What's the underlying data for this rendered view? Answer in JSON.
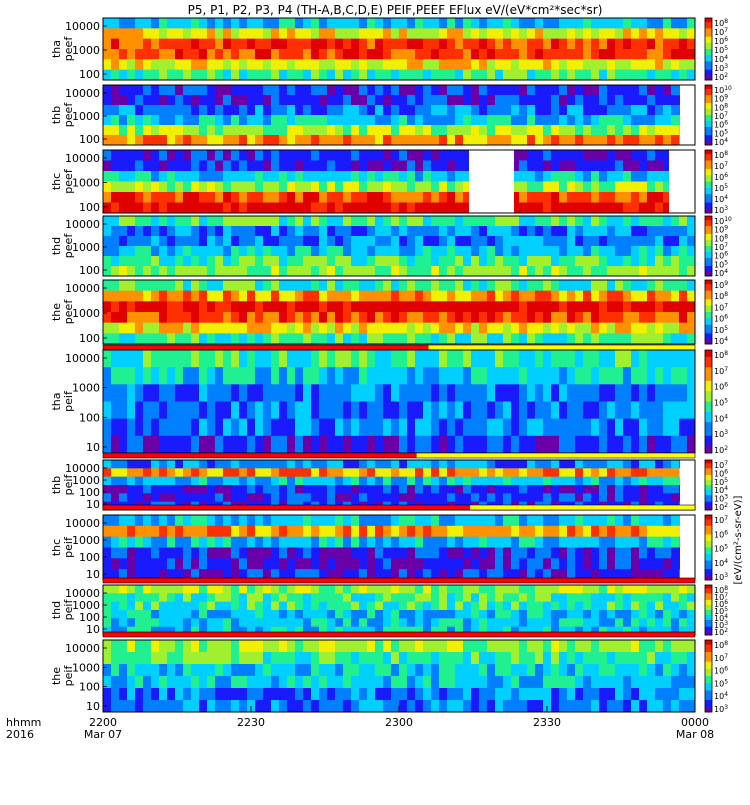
{
  "title": "P5, P1, P2, P3, P4 (TH-A,B,C,D,E) PEIF,PEEF EFlux eV/(eV*cm²*sec*sr)",
  "chart_data": {
    "type": "heatmap",
    "x_axis": {
      "label_rows": [
        "hhmm",
        "2016"
      ],
      "ticks": [
        {
          "time": "2200",
          "date": "Mar 07"
        },
        {
          "time": "2230",
          "date": ""
        },
        {
          "time": "2300",
          "date": ""
        },
        {
          "time": "2330",
          "date": ""
        },
        {
          "time": "0000",
          "date": "Mar 08"
        }
      ]
    },
    "panels": [
      {
        "name": "tha peef",
        "probe": "tha",
        "species": "peef",
        "yticks": [
          "10000",
          "1000",
          "100"
        ],
        "cbar_labels": [
          "10^8",
          "10^7",
          "10^6",
          "10^5",
          "10^4",
          "10^3",
          "10^2"
        ],
        "profile": [
          3,
          6,
          8,
          8,
          6,
          4
        ],
        "has_range_bar": false
      },
      {
        "name": "thb peef",
        "probe": "thb",
        "species": "peef",
        "yticks": [
          "10000",
          "1000",
          "100"
        ],
        "cbar_labels": [
          "10^10",
          "10^9",
          "10^8",
          "10^7",
          "10^6",
          "10^5",
          "10^4"
        ],
        "profile": [
          1,
          1,
          2,
          3,
          5,
          7
        ],
        "has_range_bar": false
      },
      {
        "name": "thc peef",
        "probe": "thc",
        "species": "peef",
        "yticks": [
          "10000",
          "1000",
          "100"
        ],
        "cbar_labels": [
          "10^8",
          "10^7",
          "10^6",
          "10^5",
          "10^4",
          "10^3"
        ],
        "profile": [
          1,
          1,
          3,
          5,
          8,
          9
        ],
        "has_range_bar": false
      },
      {
        "name": "thd peef",
        "probe": "thd",
        "species": "peef",
        "yticks": [
          "10000",
          "1000",
          "100"
        ],
        "cbar_labels": [
          "10^10",
          "10^9",
          "10^8",
          "10^7",
          "10^6",
          "10^5",
          "10^4"
        ],
        "profile": [
          4,
          2,
          2,
          3,
          4,
          5
        ],
        "has_range_bar": false
      },
      {
        "name": "the peef",
        "probe": "the",
        "species": "peef",
        "yticks": [
          "10000",
          "1000",
          "100"
        ],
        "cbar_labels": [
          "10^9",
          "10^8",
          "10^7",
          "10^6",
          "10^5",
          "10^4"
        ],
        "profile": [
          4,
          7,
          9,
          8,
          6,
          4
        ],
        "has_range_bar": false
      },
      {
        "name": "tha peif",
        "probe": "tha",
        "species": "peif",
        "yticks": [
          "10000",
          "1000",
          "100",
          "10"
        ],
        "cbar_labels": [
          "10^8",
          "10^7",
          "10^6",
          "10^5",
          "10^4",
          "10^3",
          "10^2"
        ],
        "profile": [
          4,
          3,
          2,
          2,
          2,
          1
        ],
        "has_range_bar": true
      },
      {
        "name": "thb peif",
        "probe": "thb",
        "species": "peif",
        "yticks": [
          "10000",
          "1000",
          "100",
          "10"
        ],
        "cbar_labels": [
          "10^7",
          "10^6",
          "10^5",
          "10^4",
          "10^3",
          "10^2"
        ],
        "profile": [
          2,
          7,
          3,
          1,
          1,
          1
        ],
        "has_range_bar": true
      },
      {
        "name": "thc peif",
        "probe": "thc",
        "species": "peif",
        "yticks": [
          "10000",
          "1000",
          "100",
          "10"
        ],
        "cbar_labels": [
          "10^7",
          "10^6",
          "10^5",
          "10^4",
          "10^3"
        ],
        "profile": [
          3,
          7,
          3,
          1,
          1,
          1
        ],
        "has_range_bar": true
      },
      {
        "name": "thd peif",
        "probe": "thd",
        "species": "peif",
        "yticks": [
          "10000",
          "1000",
          "100",
          "10"
        ],
        "cbar_labels": [
          "10^8",
          "10^7",
          "10^6",
          "10^5",
          "10^4",
          "10^3",
          "10^2"
        ],
        "profile": [
          5,
          4,
          4,
          3,
          3,
          3
        ],
        "has_range_bar": true
      },
      {
        "name": "the peif",
        "probe": "the",
        "species": "peif",
        "yticks": [
          "10000",
          "1000",
          "100",
          "10"
        ],
        "cbar_labels": [
          "10^8",
          "10^7",
          "10^6",
          "10^5",
          "10^4",
          "10^3"
        ],
        "profile": [
          5,
          4,
          3,
          3,
          2,
          2
        ],
        "has_range_bar": true
      }
    ],
    "colorbar_axis_label": "[eV/(cm²-s-sr-eV)]",
    "colors": {
      "scale": [
        "#6a00a8",
        "#1a1aff",
        "#0080ff",
        "#00d0ff",
        "#20f090",
        "#a0f030",
        "#f0f000",
        "#ff9000",
        "#ff3000",
        "#e00000"
      ],
      "range_bar_red": "#ff0000",
      "range_bar_yellow": "#ffff00",
      "frame": "#000000",
      "fill_white": "#ffffff"
    }
  }
}
